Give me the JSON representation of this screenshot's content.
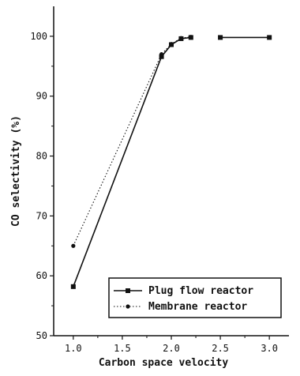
{
  "chart_data": {
    "type": "line",
    "title": "",
    "xlabel": "Carbon space velocity",
    "ylabel": "CO selectivity (%)",
    "xlim": [
      0.8,
      3.2
    ],
    "ylim": [
      50,
      105
    ],
    "x_ticks": [
      1.0,
      1.5,
      2.0,
      2.5,
      3.0
    ],
    "x_tick_labels": [
      "1.0",
      "1.5",
      "2.0",
      "2.5",
      "3.0"
    ],
    "y_ticks": [
      50,
      60,
      70,
      80,
      90,
      100
    ],
    "y_tick_labels": [
      "50",
      "60",
      "70",
      "80",
      "90",
      "100"
    ],
    "grid": false,
    "legend_position": "bottom-right",
    "series": [
      {
        "name": "Plug flow reactor",
        "marker": "square",
        "line_style": "solid",
        "color": "#111111",
        "segments": [
          [
            [
              1.0,
              58.2
            ],
            [
              1.9,
              96.6
            ],
            [
              2.0,
              98.6
            ],
            [
              2.1,
              99.6
            ],
            [
              2.2,
              99.8
            ]
          ],
          [
            [
              2.5,
              99.8
            ],
            [
              3.0,
              99.8
            ]
          ]
        ]
      },
      {
        "name": "Membrane reactor",
        "marker": "circle",
        "line_style": "dotted",
        "color": "#111111",
        "segments": [
          [
            [
              1.0,
              65.0
            ],
            [
              1.9,
              97.0
            ],
            [
              2.0,
              98.7
            ],
            [
              2.1,
              99.7
            ],
            [
              2.2,
              99.9
            ]
          ]
        ]
      }
    ]
  }
}
